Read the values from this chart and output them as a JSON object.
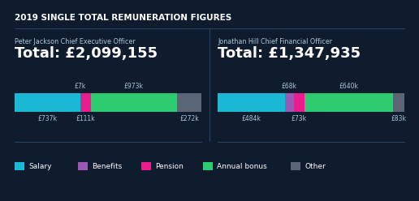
{
  "bg_color": "#0e1c2e",
  "title": "2019 SINGLE TOTAL REMUNERATION FIGURES",
  "title_color": "#ffffff",
  "title_fontsize": 7.5,
  "person1_name": "Peter Jackson Chief Executive Officer",
  "person1_total": "Total: £2,099,155",
  "person1_bars": {
    "Salary": 737,
    "Benefits": 7,
    "Pension": 111,
    "Annual bonus": 973,
    "Other": 272
  },
  "person2_name": "Jonathan Hill Chief Financial Officer",
  "person2_total": "Total: £1,347,935",
  "person2_bars": {
    "Salary": 484,
    "Benefits": 68,
    "Pension": 73,
    "Annual bonus": 640,
    "Other": 83
  },
  "colors": {
    "Salary": "#1ab8d4",
    "Benefits": "#9b59b6",
    "Pension": "#e91e8c",
    "Annual bonus": "#2ecc71",
    "Other": "#5a6675"
  },
  "bar_labels_above": {
    "person1": {
      "Benefits": "£7k",
      "Annual bonus": "£973k"
    },
    "person2": {
      "Benefits": "£68k",
      "Annual bonus": "£640k"
    }
  },
  "bar_labels_below": {
    "person1": {
      "Salary": "£737k",
      "Pension": "£111k",
      "Other": "£272k"
    },
    "person2": {
      "Salary": "£484k",
      "Pension": "£73k",
      "Other": "£83k"
    }
  },
  "legend_items": [
    "Salary",
    "Benefits",
    "Pension",
    "Annual bonus",
    "Other"
  ],
  "text_color": "#ffffff",
  "name_color": "#aac8dc",
  "label_color": "#aac8dc",
  "divider_color": "#2a4060",
  "name_fontsize": 5.8,
  "total_fontsize": 13,
  "bar_label_fontsize": 5.5,
  "legend_fontsize": 6.5
}
